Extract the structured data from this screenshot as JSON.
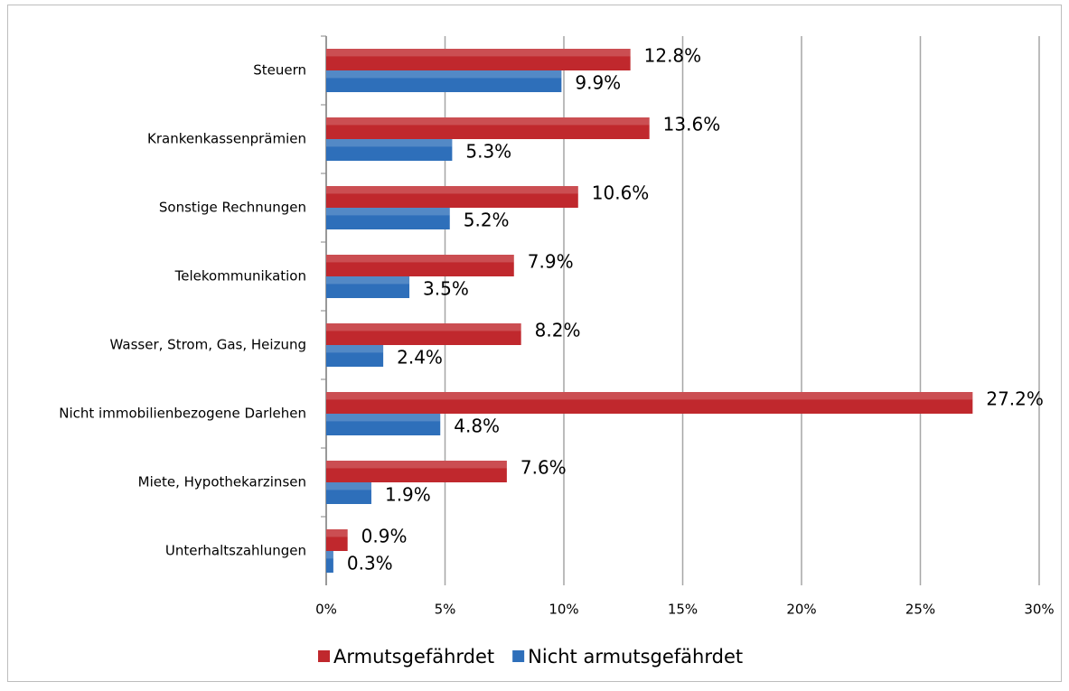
{
  "chart_data": {
    "type": "bar",
    "orientation": "horizontal",
    "categories": [
      "Steuern",
      "Krankenkassenprämien",
      "Sonstige Rechnungen",
      "Telekommunikation",
      "Wasser, Strom, Gas, Heizung",
      "Nicht immobilienbezogene Darlehen",
      "Miete, Hypothekarzinsen",
      "Unterhaltszahlungen"
    ],
    "series": [
      {
        "name": "Armutsgefährdet",
        "color": "#c0282d",
        "values": [
          12.8,
          13.6,
          10.6,
          7.9,
          8.2,
          27.2,
          7.6,
          0.9
        ],
        "value_labels": [
          "12.8%",
          "13.6%",
          "10.6%",
          "7.9%",
          "8.2%",
          "27.2%",
          "7.6%",
          "0.9%"
        ]
      },
      {
        "name": "Nicht armutsgefährdet",
        "color": "#2e6fba",
        "values": [
          9.9,
          5.3,
          5.2,
          3.5,
          2.4,
          4.8,
          1.9,
          0.3
        ],
        "value_labels": [
          "9.9%",
          "5.3%",
          "5.2%",
          "3.5%",
          "2.4%",
          "4.8%",
          "1.9%",
          "0.3%"
        ]
      }
    ],
    "xlim": [
      0,
      30
    ],
    "xticks": [
      {
        "value": 0,
        "label": "0%"
      },
      {
        "value": 5,
        "label": "5%"
      },
      {
        "value": 10,
        "label": "10%"
      },
      {
        "value": 15,
        "label": "15%"
      },
      {
        "value": 20,
        "label": "20%"
      },
      {
        "value": 25,
        "label": "25%"
      },
      {
        "value": 30,
        "label": "30%"
      }
    ],
    "grid": true,
    "legend": "bottom"
  }
}
